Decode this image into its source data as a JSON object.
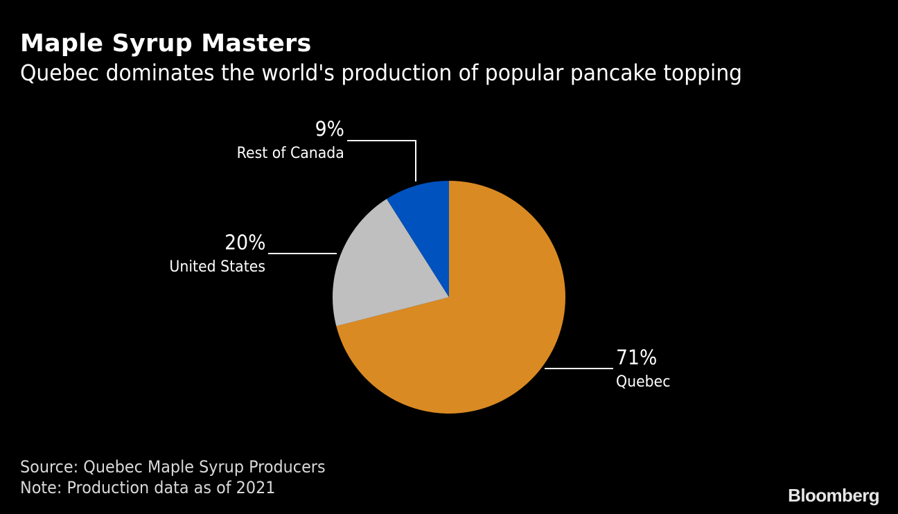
{
  "header": {
    "title": "Maple Syrup Masters",
    "subtitle": "Quebec dominates the world's production of popular pancake topping"
  },
  "labels": {
    "rest_of_canada": {
      "pct": "9%",
      "name": "Rest of Canada"
    },
    "united_states": {
      "pct": "20%",
      "name": "United States"
    },
    "quebec": {
      "pct": "71%",
      "name": "Quebec"
    }
  },
  "footer": {
    "source": "Source: Quebec Maple Syrup Producers",
    "note": "Note: Production data as of 2021"
  },
  "brand": "Bloomberg",
  "colors": {
    "background": "#000000",
    "quebec": "#DA8A22",
    "united_states": "#BFBFBF",
    "rest_of_canada": "#0052BE",
    "text": "#FFFFFF",
    "leader": "#FFFFFF"
  },
  "chart_data": {
    "type": "pie",
    "title": "Maple Syrup Masters",
    "subtitle": "Quebec dominates the world's production of popular pancake topping",
    "categories": [
      "Quebec",
      "United States",
      "Rest of Canada"
    ],
    "values": [
      71,
      20,
      9
    ],
    "unit": "%",
    "start_angle": "12 o'clock",
    "direction": "clockwise",
    "colors": [
      "#DA8A22",
      "#BFBFBF",
      "#0052BE"
    ],
    "legend": "none (direct labels with leader lines)",
    "source": "Quebec Maple Syrup Producers",
    "note": "Production data as of 2021"
  }
}
